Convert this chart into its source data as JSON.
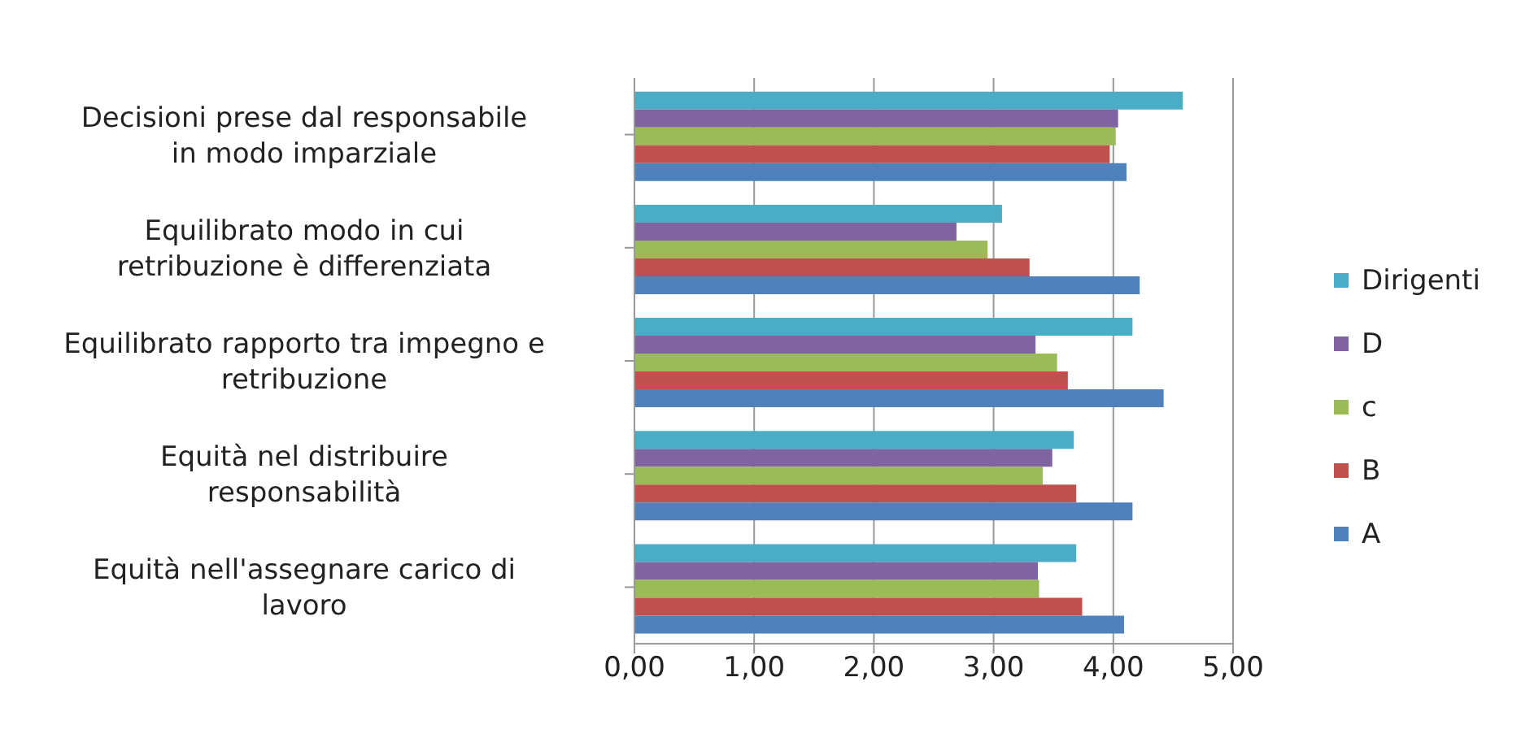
{
  "chart_data": {
    "type": "bar",
    "orientation": "horizontal",
    "categories": [
      "Decisioni prese dal responsabile in modo imparziale",
      "Equilibrato modo in cui retribuzione è differenziata",
      "Equilibrato rapporto tra impegno e retribuzione",
      "Equità nel distribuire responsabilità",
      "Equità nell'assegnare carico di lavoro"
    ],
    "series": [
      {
        "name": "A",
        "color": "#4f81bd",
        "values": [
          4.11,
          4.22,
          4.42,
          4.16,
          4.09
        ]
      },
      {
        "name": "B",
        "color": "#c0504d",
        "values": [
          3.97,
          3.3,
          3.62,
          3.69,
          3.74
        ]
      },
      {
        "name": "c",
        "color": "#9bbb59",
        "values": [
          4.02,
          2.95,
          3.53,
          3.41,
          3.38
        ]
      },
      {
        "name": "D",
        "color": "#8064a2",
        "values": [
          4.04,
          2.69,
          3.35,
          3.49,
          3.37
        ]
      },
      {
        "name": "Dirigenti",
        "color": "#4bacc6",
        "values": [
          4.58,
          3.07,
          4.16,
          3.67,
          3.69
        ]
      }
    ],
    "xlim": [
      0,
      5
    ],
    "xticks": [
      {
        "value": 0,
        "label": "0,00"
      },
      {
        "value": 1,
        "label": "1,00"
      },
      {
        "value": 2,
        "label": "2,00"
      },
      {
        "value": 3,
        "label": "3,00"
      },
      {
        "value": 4,
        "label": "4,00"
      },
      {
        "value": 5,
        "label": "5,00"
      }
    ],
    "grid": "x",
    "legend": "right"
  }
}
